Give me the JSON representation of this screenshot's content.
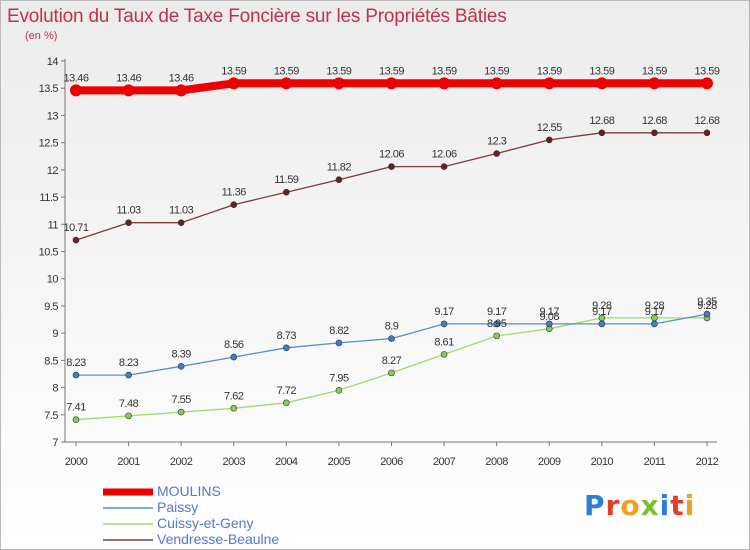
{
  "title": "Evolution du Taux de Taxe Foncière sur les Propriétés Bâties",
  "subtitle": "(en %)",
  "logo": {
    "text": "Proxiti",
    "colors": [
      "#2c7fd6",
      "#e0402a",
      "#f0a020",
      "#7cbf34",
      "#2c7fd6",
      "#e0402a",
      "#f0a020"
    ]
  },
  "chart_data": {
    "type": "line",
    "x": [
      "2000",
      "2001",
      "2002",
      "2003",
      "2004",
      "2005",
      "2006",
      "2007",
      "2008",
      "2009",
      "2010",
      "2011",
      "2012"
    ],
    "ylim": [
      7,
      14
    ],
    "yticks": [
      "7",
      "7.5",
      "8",
      "8.5",
      "9",
      "9.5",
      "10",
      "10.5",
      "11",
      "11.5",
      "12",
      "12.5",
      "13",
      "13.5",
      "14"
    ],
    "grid": false,
    "legend_position": "bottom",
    "series": [
      {
        "name": "MOULINS",
        "color": "#ee0000",
        "thick": true,
        "values": [
          13.46,
          13.46,
          13.46,
          13.59,
          13.59,
          13.59,
          13.59,
          13.59,
          13.59,
          13.59,
          13.59,
          13.59,
          13.59
        ],
        "labels": [
          "13.46",
          "13.46",
          "13.46",
          "13.59",
          "13.59",
          "13.59",
          "13.59",
          "13.59",
          "13.59",
          "13.59",
          "13.59",
          "13.59",
          "13.59"
        ]
      },
      {
        "name": "Paissy",
        "color": "#5b8ec8",
        "marker": "#3d7fc8",
        "values": [
          8.23,
          8.23,
          8.39,
          8.56,
          8.73,
          8.82,
          8.9,
          9.17,
          9.17,
          9.17,
          9.17,
          9.17,
          9.35
        ],
        "labels": [
          "8.23",
          "8.23",
          "8.39",
          "8.56",
          "8.73",
          "8.82",
          "8.9",
          "9.17",
          "9.17",
          "9.17",
          "9.17",
          "9.17",
          "9.35"
        ]
      },
      {
        "name": "Cuissy-et-Geny",
        "color": "#9fdb6f",
        "marker": "#8acc50",
        "values": [
          7.41,
          7.48,
          7.55,
          7.62,
          7.72,
          7.95,
          8.27,
          8.61,
          8.95,
          9.08,
          9.28,
          9.28,
          9.28
        ],
        "labels": [
          "7.41",
          "7.48",
          "7.55",
          "7.62",
          "7.72",
          "7.95",
          "8.27",
          "8.61",
          "8.95",
          "9.08",
          "9.28",
          "9.28",
          "9.28"
        ]
      },
      {
        "name": "Vendresse-Beaulne",
        "color": "#7a3b3b",
        "marker": "#6a1f1f",
        "values": [
          10.71,
          11.03,
          11.03,
          11.36,
          11.59,
          11.82,
          12.06,
          12.06,
          12.3,
          12.55,
          12.68,
          12.68,
          12.68
        ],
        "labels": [
          "10.71",
          "11.03",
          "11.03",
          "11.36",
          "11.59",
          "11.82",
          "12.06",
          "12.06",
          "12.3",
          "12.55",
          "12.68",
          "12.68",
          "12.68"
        ]
      }
    ]
  }
}
